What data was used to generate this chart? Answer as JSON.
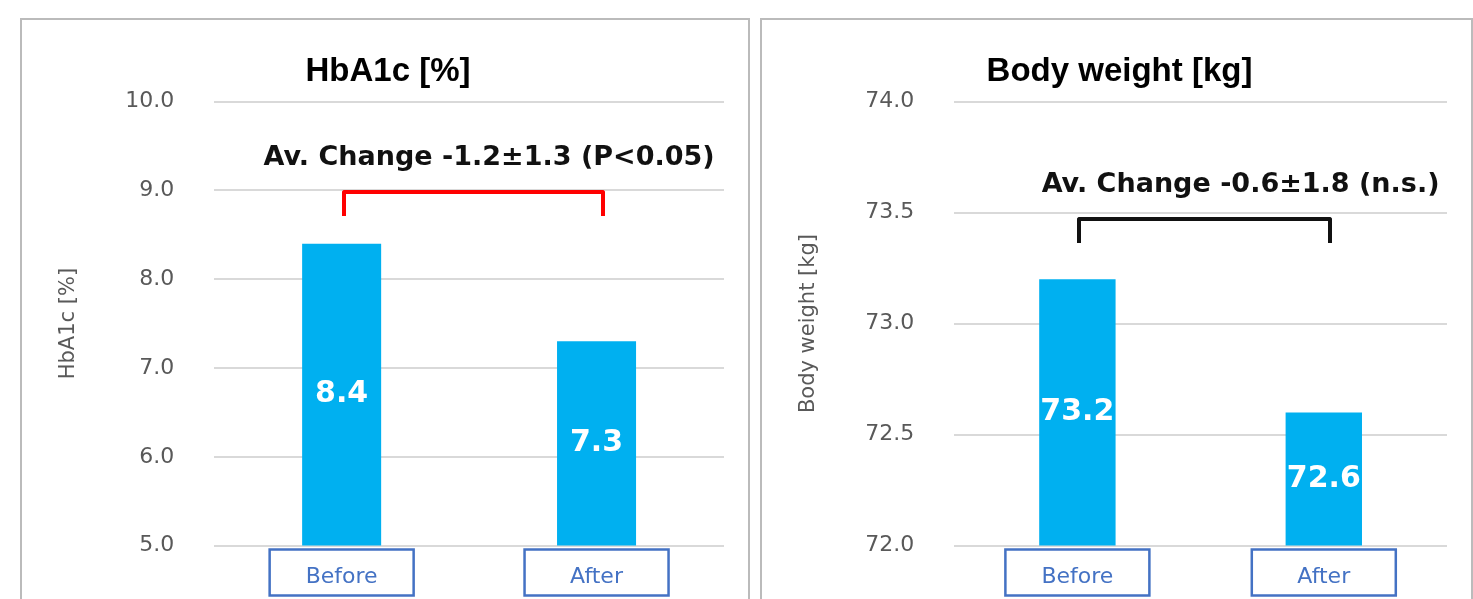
{
  "chart_data": [
    {
      "type": "bar",
      "title": "HbA1c [%]",
      "ylabel": "HbA1c [%]",
      "categories": [
        "Before",
        "After"
      ],
      "values": [
        8.4,
        7.3
      ],
      "color": "#00b0f0",
      "ylim": [
        5.0,
        10.0
      ],
      "yticks": [
        {
          "value": 5,
          "label": "5.0"
        },
        {
          "value": 6,
          "label": "6.0"
        },
        {
          "value": 7,
          "label": "7.0"
        },
        {
          "value": 8,
          "label": "8.0"
        },
        {
          "value": 9,
          "label": "9.0"
        },
        {
          "value": 10,
          "label": "10.0"
        }
      ],
      "grid": "y",
      "legend": false,
      "data_labels": true,
      "annotations": [
        "Av. Change -1.2±1.3 (P<0.05)"
      ]
    },
    {
      "type": "bar",
      "title": "Body weight [kg]",
      "ylabel": "Body weight [kg]",
      "categories": [
        "Before",
        "After"
      ],
      "values": [
        73.2,
        72.6
      ],
      "color": "#00b0f0",
      "ylim": [
        72.0,
        74.0
      ],
      "yticks": [
        {
          "value": 72,
          "label": "72.0"
        },
        {
          "value": 72.5,
          "label": "72.5"
        },
        {
          "value": 73,
          "label": "73.0"
        },
        {
          "value": 73.5,
          "label": "73.5"
        },
        {
          "value": 74,
          "label": "74.0"
        }
      ],
      "grid": "y",
      "legend": false,
      "data_labels": true,
      "annotations": [
        "Av. Change -0.6±1.8 (n.s.)"
      ]
    }
  ]
}
